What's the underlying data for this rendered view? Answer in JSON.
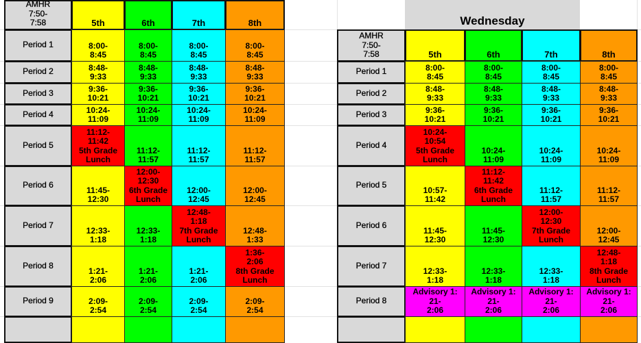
{
  "colors": {
    "5th": "#ffff00",
    "6th": "#00ff00",
    "7th": "#00ffff",
    "8th": "#ff9900",
    "lunch": "#ff0000",
    "advisory": "#ff00ff",
    "label": "#d9d9d9"
  },
  "tables": [
    {
      "day_title": "",
      "header_label": "AMHR\n7:50-\n7:58",
      "grades": [
        "5th",
        "6th",
        "7th",
        "8th"
      ],
      "rows": [
        {
          "label": "Period 1",
          "cells": [
            {
              "text": "8:00-\n8:45",
              "color": "5th"
            },
            {
              "text": "8:00-\n8:45",
              "color": "6th"
            },
            {
              "text": "8:00-\n8:45",
              "color": "7th"
            },
            {
              "text": "8:00-\n8:45",
              "color": "8th"
            }
          ]
        },
        {
          "label": "Period 2",
          "cells": [
            {
              "text": "8:48-\n9:33",
              "color": "5th"
            },
            {
              "text": "8:48-\n9:33",
              "color": "6th"
            },
            {
              "text": "8:48-\n9:33",
              "color": "7th"
            },
            {
              "text": "8:48-\n9:33",
              "color": "8th"
            }
          ]
        },
        {
          "label": "Period 3",
          "cells": [
            {
              "text": "9:36-\n10:21",
              "color": "5th"
            },
            {
              "text": "9:36-\n10:21",
              "color": "6th"
            },
            {
              "text": "9:36-\n10:21",
              "color": "7th"
            },
            {
              "text": "9:36-\n10:21",
              "color": "8th"
            }
          ]
        },
        {
          "label": "Period 4",
          "cells": [
            {
              "text": "10:24-\n11:09",
              "color": "5th"
            },
            {
              "text": "10:24-\n11:09",
              "color": "6th"
            },
            {
              "text": "10:24-\n11:09",
              "color": "7th"
            },
            {
              "text": "10:24-\n11:09",
              "color": "8th"
            }
          ]
        },
        {
          "label": "Period 5",
          "cells": [
            {
              "text": "11:12-\n11:42\n5th Grade\nLunch",
              "color": "lunch"
            },
            {
              "text": "11:12-\n11:57",
              "color": "6th"
            },
            {
              "text": "11:12-\n11:57",
              "color": "7th"
            },
            {
              "text": "11:12-\n11:57",
              "color": "8th"
            }
          ]
        },
        {
          "label": "Period 6",
          "cells": [
            {
              "text": "11:45-\n12:30",
              "color": "5th"
            },
            {
              "text": "12:00-\n12:30\n6th Grade\nLunch",
              "color": "lunch"
            },
            {
              "text": "12:00-\n12:45",
              "color": "7th"
            },
            {
              "text": "12:00-\n12:45",
              "color": "8th"
            }
          ]
        },
        {
          "label": "Period 7",
          "cells": [
            {
              "text": "12:33-\n1:18",
              "color": "5th"
            },
            {
              "text": "12:33-\n1:18",
              "color": "6th"
            },
            {
              "text": "12:48-\n1:18\n7th Grade\nLunch",
              "color": "lunch"
            },
            {
              "text": "12:48-\n1:33",
              "color": "8th"
            }
          ]
        },
        {
          "label": "Period 8",
          "cells": [
            {
              "text": "1:21-\n2:06",
              "color": "5th"
            },
            {
              "text": "1:21-\n2:06",
              "color": "6th"
            },
            {
              "text": "1:21-\n2:06",
              "color": "7th"
            },
            {
              "text": "1:36-\n2:06\n8th Grade\nLunch",
              "color": "lunch"
            }
          ]
        },
        {
          "label": "Period 9",
          "cells": [
            {
              "text": "2:09-\n2:54",
              "color": "5th"
            },
            {
              "text": "2:09-\n2:54",
              "color": "6th"
            },
            {
              "text": "2:09-\n2:54",
              "color": "7th"
            },
            {
              "text": "2:09-\n2:54",
              "color": "8th"
            }
          ]
        },
        {
          "label": "",
          "cells": [
            {
              "text": "",
              "color": "5th"
            },
            {
              "text": "",
              "color": "6th"
            },
            {
              "text": "",
              "color": "7th"
            },
            {
              "text": "",
              "color": "8th"
            }
          ]
        }
      ]
    },
    {
      "day_title": "Wednesday",
      "header_label": "AMHR\n7:50-\n7:58",
      "grades": [
        "5th",
        "6th",
        "7th",
        "8th"
      ],
      "rows": [
        {
          "label": "Period 1",
          "cells": [
            {
              "text": "8:00-\n8:45",
              "color": "5th"
            },
            {
              "text": "8:00-\n8:45",
              "color": "6th"
            },
            {
              "text": "8:00-\n8:45",
              "color": "7th"
            },
            {
              "text": "8:00-\n8:45",
              "color": "8th"
            }
          ]
        },
        {
          "label": "Period 2",
          "cells": [
            {
              "text": "8:48-\n9:33",
              "color": "5th"
            },
            {
              "text": "8:48-\n9:33",
              "color": "6th"
            },
            {
              "text": "8:48-\n9:33",
              "color": "7th"
            },
            {
              "text": "8:48-\n9:33",
              "color": "8th"
            }
          ]
        },
        {
          "label": "Period 3",
          "cells": [
            {
              "text": "9:36-\n10:21",
              "color": "5th"
            },
            {
              "text": "9:36-\n10:21",
              "color": "6th"
            },
            {
              "text": "9:36-\n10:21",
              "color": "7th"
            },
            {
              "text": "9:36-\n10:21",
              "color": "8th"
            }
          ]
        },
        {
          "label": "Period 4",
          "cells": [
            {
              "text": "10:24-\n10:54\n5th Grade\nLunch",
              "color": "lunch"
            },
            {
              "text": "10:24-\n11:09",
              "color": "6th"
            },
            {
              "text": "10:24-\n11:09",
              "color": "7th"
            },
            {
              "text": "10:24-\n11:09",
              "color": "8th"
            }
          ]
        },
        {
          "label": "Period 5",
          "cells": [
            {
              "text": "10:57-\n11:42",
              "color": "5th"
            },
            {
              "text": "11:12-\n11:42\n6th Grade\nLunch",
              "color": "lunch"
            },
            {
              "text": "11:12-\n11:57",
              "color": "7th"
            },
            {
              "text": "11:12-\n11:57",
              "color": "8th"
            }
          ]
        },
        {
          "label": "Period 6",
          "cells": [
            {
              "text": "11:45-\n12:30",
              "color": "5th"
            },
            {
              "text": "11:45-\n12:30",
              "color": "6th"
            },
            {
              "text": "12:00-\n12:30\n7th Grade\nLunch",
              "color": "lunch"
            },
            {
              "text": "12:00-\n12:45",
              "color": "8th"
            }
          ]
        },
        {
          "label": "Period 7",
          "cells": [
            {
              "text": "12:33-\n1:18",
              "color": "5th"
            },
            {
              "text": "12:33-\n1:18",
              "color": "6th"
            },
            {
              "text": "12:33-\n1:18",
              "color": "7th"
            },
            {
              "text": "12:48-\n1:18\n8th Grade\nLunch",
              "color": "lunch"
            }
          ]
        },
        {
          "label": "Period 8",
          "cells": [
            {
              "text": "Advisory  1:\n21-\n2:06",
              "color": "advisory"
            },
            {
              "text": "Advisory  1:\n21-\n2:06",
              "color": "advisory"
            },
            {
              "text": "Advisory 1:\n21-\n2:06",
              "color": "advisory"
            },
            {
              "text": "Advisory  1:\n21-\n2:06",
              "color": "advisory"
            }
          ]
        },
        {
          "label": "",
          "cells": [
            {
              "text": "",
              "color": "5th"
            },
            {
              "text": "",
              "color": "6th"
            },
            {
              "text": "",
              "color": "7th"
            },
            {
              "text": "",
              "color": "8th"
            }
          ]
        }
      ]
    }
  ]
}
